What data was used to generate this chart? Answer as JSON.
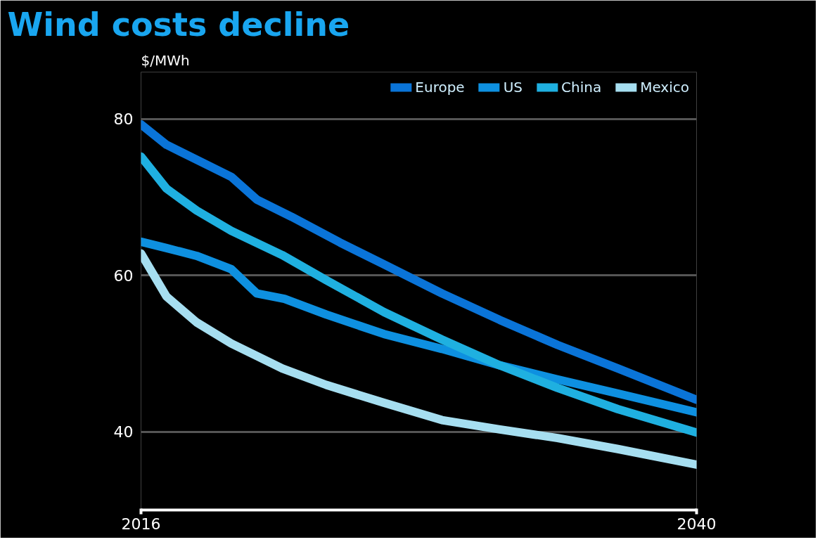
{
  "chart_data": {
    "type": "line",
    "title": "Wind costs decline",
    "ylabel": "$/MWh",
    "xlim": [
      2016,
      2040
    ],
    "xticks": [
      2016,
      2040
    ],
    "ylim": [
      30,
      86
    ],
    "yticks": [
      40,
      60,
      80
    ],
    "grid": "y",
    "legend": "top right",
    "line_style": "solid",
    "marker": "none",
    "series": [
      {
        "name": "Europe",
        "color": "#0a74d8",
        "x": [
          2016,
          2017.1,
          2018.4,
          2019.9,
          2021,
          2022.5,
          2024.6,
          2026.5,
          2029,
          2031.5,
          2034,
          2036.6,
          2040
        ],
        "values": [
          79.3,
          76.7,
          74.8,
          72.6,
          69.7,
          67.5,
          64.2,
          61.4,
          57.7,
          54.3,
          51.1,
          48.1,
          44.1
        ]
      },
      {
        "name": "US",
        "color": "#0e90e0",
        "x": [
          2016,
          2017.1,
          2018.4,
          2019.9,
          2021,
          2022.2,
          2024,
          2026.5,
          2029,
          2031.5,
          2034,
          2036.6,
          2040
        ],
        "values": [
          64.3,
          63.5,
          62.5,
          60.8,
          57.7,
          57.0,
          55.0,
          52.5,
          50.6,
          48.5,
          46.7,
          44.9,
          42.5
        ]
      },
      {
        "name": "China",
        "color": "#1fb0e0",
        "x": [
          2016,
          2017.1,
          2018.4,
          2019.9,
          2022.1,
          2024,
          2026.5,
          2029,
          2031.5,
          2034,
          2036.6,
          2040
        ],
        "values": [
          75.2,
          71.1,
          68.3,
          65.7,
          62.6,
          59.4,
          55.3,
          51.8,
          48.5,
          45.6,
          42.9,
          39.9
        ]
      },
      {
        "name": "Mexico",
        "color": "#a6def0",
        "x": [
          2016,
          2017.1,
          2018.4,
          2019.9,
          2022.1,
          2024,
          2026.5,
          2029,
          2031.5,
          2034,
          2036.6,
          2040
        ],
        "values": [
          62.8,
          57.3,
          54.0,
          51.3,
          48.1,
          46.0,
          43.7,
          41.5,
          40.3,
          39.2,
          37.8,
          35.8
        ]
      }
    ]
  }
}
